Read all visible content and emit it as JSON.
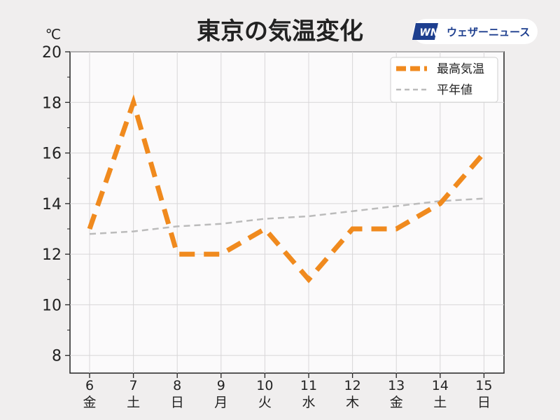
{
  "chart_data": {
    "type": "line",
    "title": "東京の気温変化",
    "unit": "℃",
    "ylim": [
      7.3,
      20
    ],
    "yticks": [
      8,
      10,
      12,
      14,
      16,
      18,
      20
    ],
    "grid": true,
    "legend_position": "top-right",
    "categories": [
      {
        "day": "6",
        "weekday": "金",
        "color": "#222222"
      },
      {
        "day": "7",
        "weekday": "土",
        "color": "#2e8fe0"
      },
      {
        "day": "8",
        "weekday": "日",
        "color": "#e03030"
      },
      {
        "day": "9",
        "weekday": "月",
        "color": "#222222"
      },
      {
        "day": "10",
        "weekday": "火",
        "color": "#222222"
      },
      {
        "day": "11",
        "weekday": "水",
        "color": "#222222"
      },
      {
        "day": "12",
        "weekday": "木",
        "color": "#222222"
      },
      {
        "day": "13",
        "weekday": "金",
        "color": "#222222"
      },
      {
        "day": "14",
        "weekday": "土",
        "color": "#2e8fe0"
      },
      {
        "day": "15",
        "weekday": "日",
        "color": "#e03030"
      }
    ],
    "series": [
      {
        "name": "最高気温",
        "color": "#f08a1e",
        "style": "dashed-thick",
        "values": [
          13,
          18,
          12,
          12,
          13,
          11,
          13,
          13,
          14,
          16
        ]
      },
      {
        "name": "平年値",
        "color": "#bbbbbb",
        "style": "dashed-thin",
        "values": [
          12.8,
          12.9,
          13.1,
          13.2,
          13.4,
          13.5,
          13.7,
          13.9,
          14.1,
          14.2
        ]
      }
    ]
  },
  "logo": {
    "mark": "WN",
    "text": "ウェザーニュース",
    "color": "#1e3f8f"
  }
}
